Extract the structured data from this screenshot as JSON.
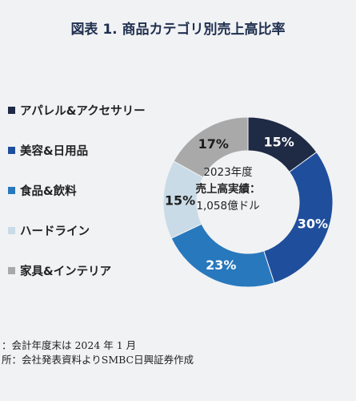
{
  "title": "図表 1. 商品カテゴリ別売上高比率",
  "chart_data": {
    "type": "pie",
    "title": "図表 1. 商品カテゴリ別売上高比率",
    "categories": [
      "アパレル&アクセサリー",
      "美容&日用品",
      "食品&飲料",
      "ハードライン",
      "家具&インテリア"
    ],
    "values": [
      15,
      30,
      23,
      15,
      17
    ],
    "value_labels": [
      "15%",
      "30%",
      "23%",
      "15%",
      "17%"
    ],
    "colors": [
      "#1f2a44",
      "#1f4e9c",
      "#2878bd",
      "#c9dbe6",
      "#a9a9a9"
    ],
    "center_lines": [
      "2023年度",
      "売上高実績：",
      "1,058億ドル"
    ],
    "legend_position": "left"
  },
  "notes": [
    "：会計年度末は 2024 年 1 月",
    "所：会社発表資料よりSMBC日興証券作成"
  ]
}
